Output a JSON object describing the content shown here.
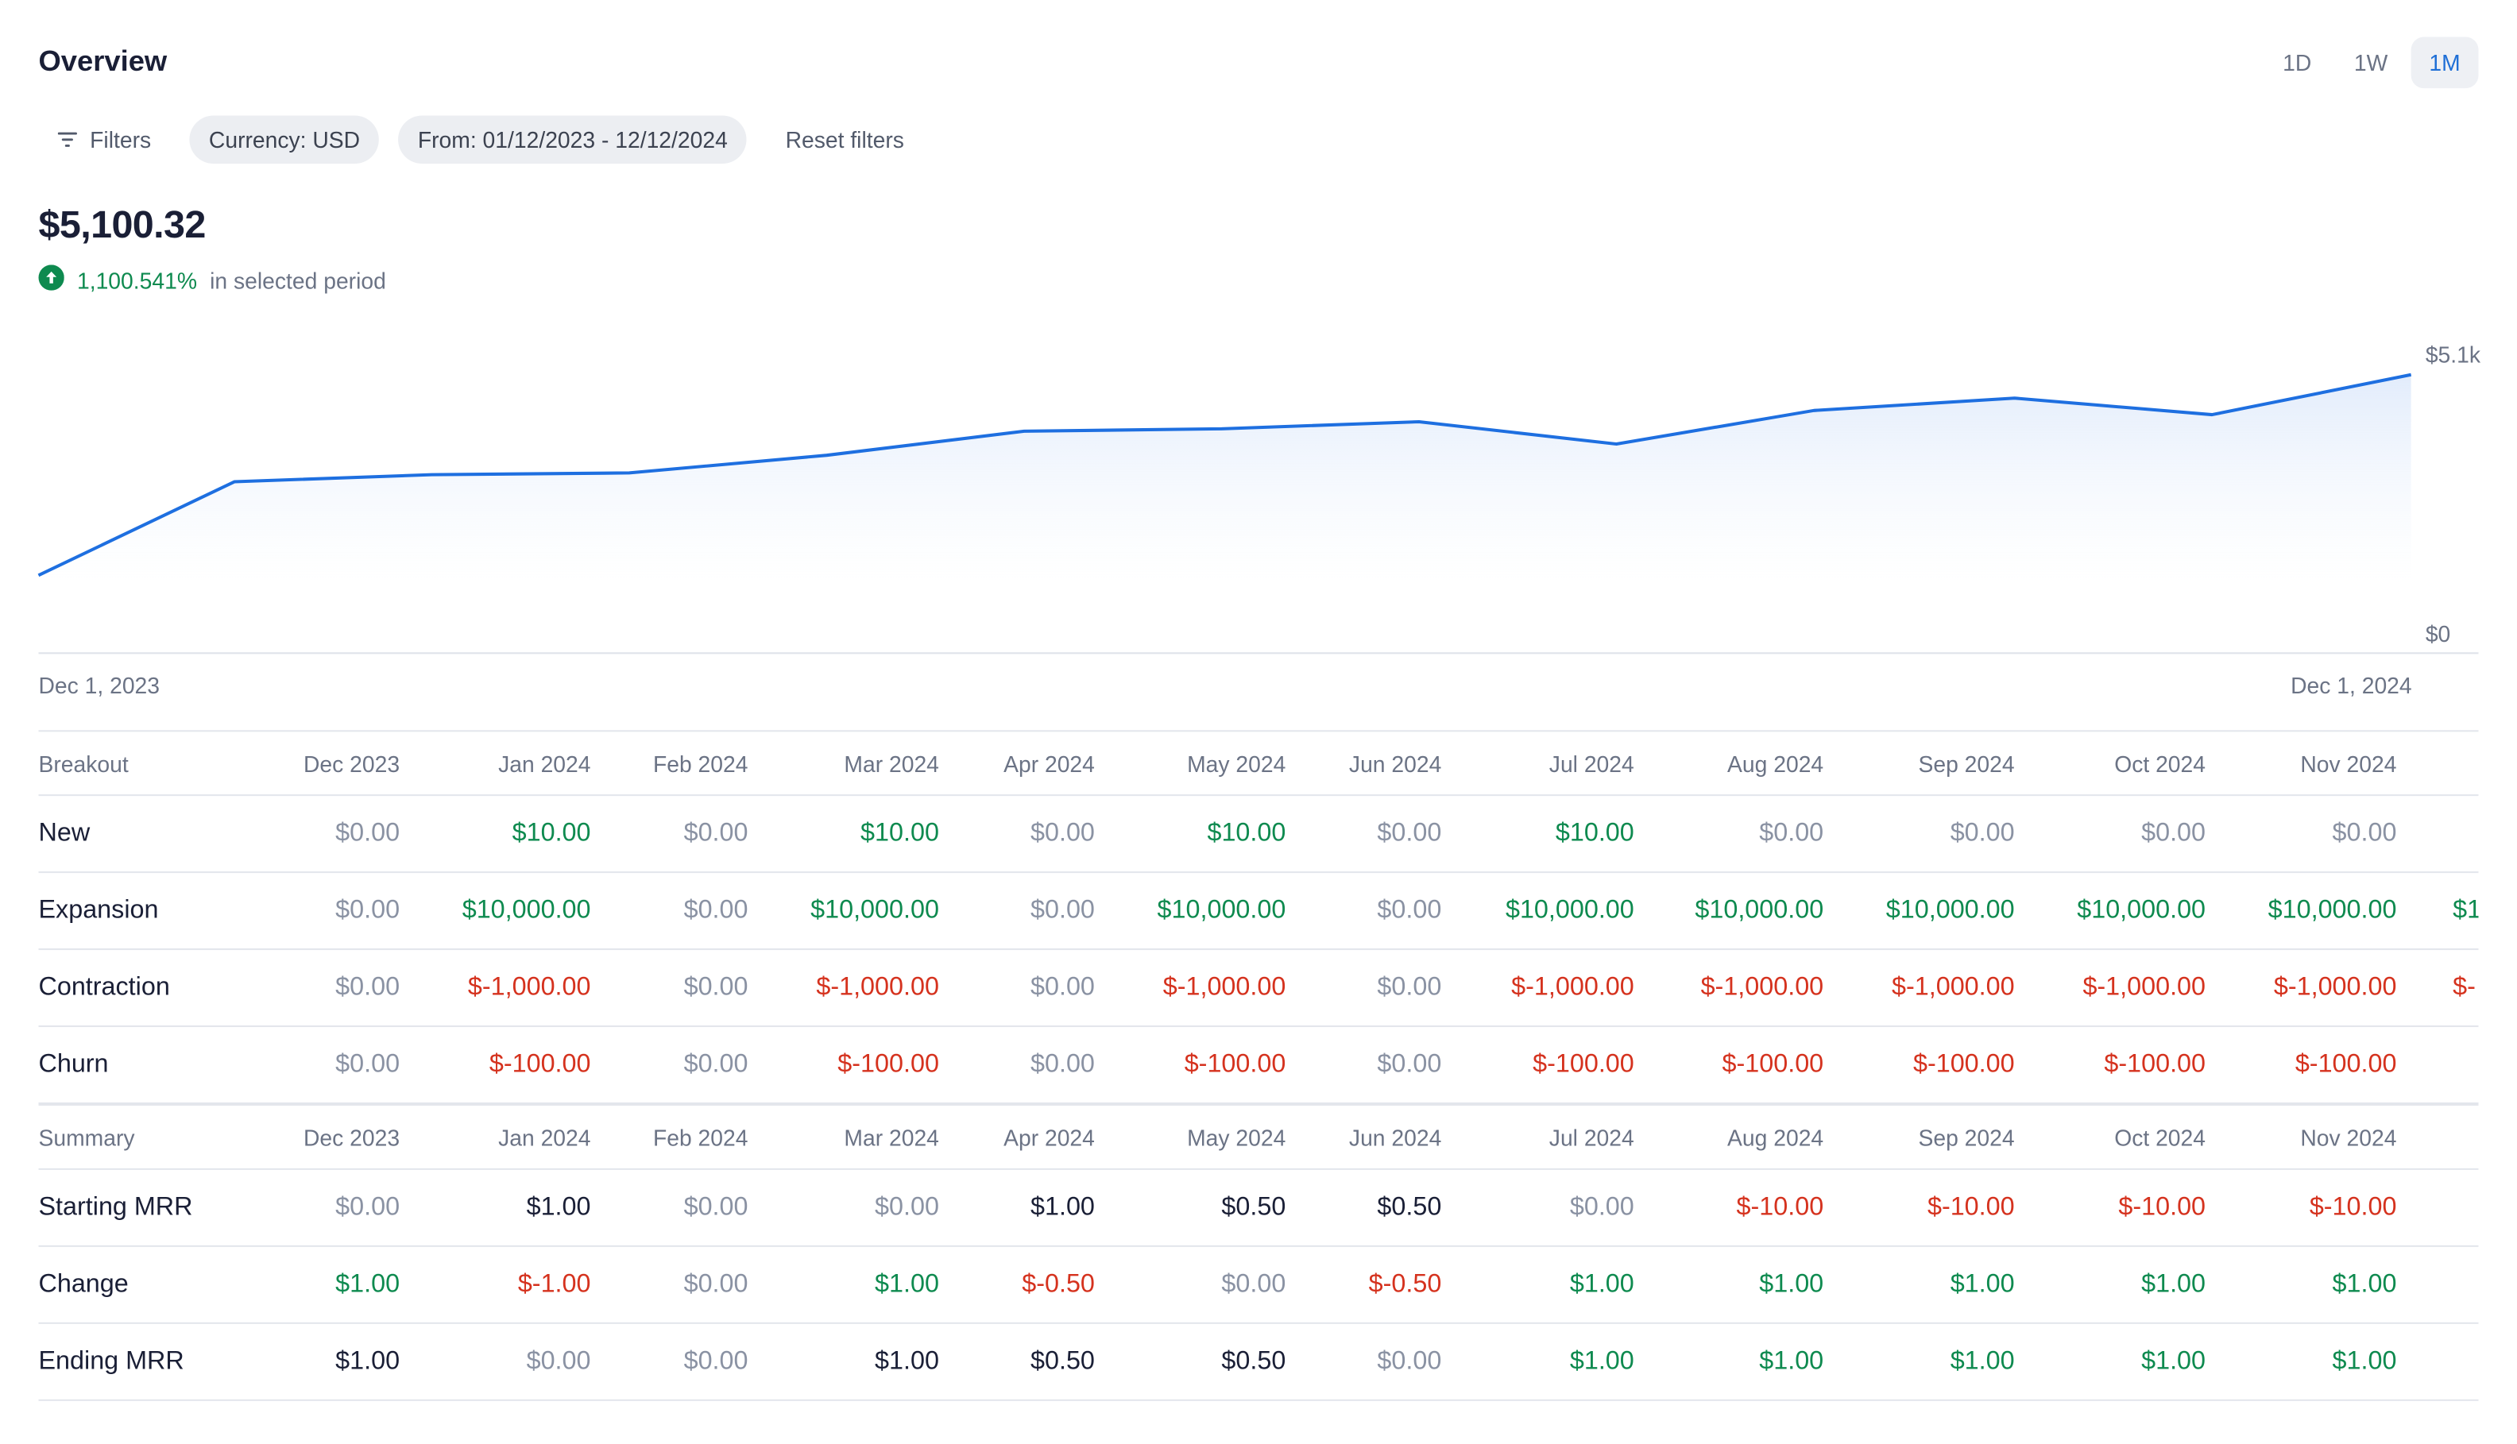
{
  "overview": {
    "title": "Overview",
    "range_tabs": [
      {
        "label": "1D",
        "active": false
      },
      {
        "label": "1W",
        "active": false
      },
      {
        "label": "1M",
        "active": true
      }
    ]
  },
  "filters": {
    "filters_label": "Filters",
    "currency_label": "Currency: USD",
    "date_label": "From: 01/12/2023 - 12/12/2024",
    "reset_label": "Reset filters"
  },
  "metric": {
    "value": "$5,100.32",
    "delta_pct": "1,100.541%",
    "delta_text": "in selected period",
    "delta_icon": "arrow-up-circle-icon"
  },
  "colors": {
    "line": "#1e6fe0",
    "positive": "#0e8a4f",
    "negative": "#d5321e",
    "zero": "#8a92a3",
    "accent": "#1f6fd6"
  },
  "chart_data": {
    "type": "area",
    "x_labels": [
      "Dec 1, 2023",
      "Dec 1, 2024"
    ],
    "x": [
      "Dec 2023",
      "Jan 2024",
      "Feb 2024",
      "Mar 2024",
      "Apr 2024",
      "May 2024",
      "Jun 2024",
      "Jul 2024",
      "Aug 2024",
      "Sep 2024",
      "Oct 2024",
      "Nov 2024",
      "Dec 2024"
    ],
    "values": [
      1050,
      2640,
      2760,
      2790,
      3090,
      3500,
      3540,
      3660,
      3280,
      3850,
      4060,
      3780,
      4460
    ],
    "y_ticks": [
      "$5.1k",
      "$0"
    ],
    "ylim": [
      0,
      5100
    ]
  },
  "table": {
    "months": [
      "Dec 2023",
      "Jan 2024",
      "Feb 2024",
      "Mar 2024",
      "Apr 2024",
      "May 2024",
      "Jun 2024",
      "Jul 2024",
      "Aug 2024",
      "Sep 2024",
      "Oct 2024",
      "Nov 2024"
    ],
    "breakout_title": "Breakout",
    "breakout_rows": [
      {
        "label": "New",
        "cells": [
          {
            "v": "$0.00",
            "k": "zero"
          },
          {
            "v": "$10.00",
            "k": "pos"
          },
          {
            "v": "$0.00",
            "k": "zero"
          },
          {
            "v": "$10.00",
            "k": "pos"
          },
          {
            "v": "$0.00",
            "k": "zero"
          },
          {
            "v": "$10.00",
            "k": "pos"
          },
          {
            "v": "$0.00",
            "k": "zero"
          },
          {
            "v": "$10.00",
            "k": "pos"
          },
          {
            "v": "$0.00",
            "k": "zero"
          },
          {
            "v": "$0.00",
            "k": "zero"
          },
          {
            "v": "$0.00",
            "k": "zero"
          },
          {
            "v": "$0.00",
            "k": "zero"
          }
        ],
        "overflow": {
          "v": "",
          "k": "zero"
        }
      },
      {
        "label": "Expansion",
        "cells": [
          {
            "v": "$0.00",
            "k": "zero"
          },
          {
            "v": "$10,000.00",
            "k": "pos"
          },
          {
            "v": "$0.00",
            "k": "zero"
          },
          {
            "v": "$10,000.00",
            "k": "pos"
          },
          {
            "v": "$0.00",
            "k": "zero"
          },
          {
            "v": "$10,000.00",
            "k": "pos"
          },
          {
            "v": "$0.00",
            "k": "zero"
          },
          {
            "v": "$10,000.00",
            "k": "pos"
          },
          {
            "v": "$10,000.00",
            "k": "pos"
          },
          {
            "v": "$10,000.00",
            "k": "pos"
          },
          {
            "v": "$10,000.00",
            "k": "pos"
          },
          {
            "v": "$10,000.00",
            "k": "pos"
          }
        ],
        "overflow": {
          "v": "$1",
          "k": "pos"
        }
      },
      {
        "label": "Contraction",
        "cells": [
          {
            "v": "$0.00",
            "k": "zero"
          },
          {
            "v": "$-1,000.00",
            "k": "neg"
          },
          {
            "v": "$0.00",
            "k": "zero"
          },
          {
            "v": "$-1,000.00",
            "k": "neg"
          },
          {
            "v": "$0.00",
            "k": "zero"
          },
          {
            "v": "$-1,000.00",
            "k": "neg"
          },
          {
            "v": "$0.00",
            "k": "zero"
          },
          {
            "v": "$-1,000.00",
            "k": "neg"
          },
          {
            "v": "$-1,000.00",
            "k": "neg"
          },
          {
            "v": "$-1,000.00",
            "k": "neg"
          },
          {
            "v": "$-1,000.00",
            "k": "neg"
          },
          {
            "v": "$-1,000.00",
            "k": "neg"
          }
        ],
        "overflow": {
          "v": "$-",
          "k": "neg"
        }
      },
      {
        "label": "Churn",
        "cells": [
          {
            "v": "$0.00",
            "k": "zero"
          },
          {
            "v": "$-100.00",
            "k": "neg"
          },
          {
            "v": "$0.00",
            "k": "zero"
          },
          {
            "v": "$-100.00",
            "k": "neg"
          },
          {
            "v": "$0.00",
            "k": "zero"
          },
          {
            "v": "$-100.00",
            "k": "neg"
          },
          {
            "v": "$0.00",
            "k": "zero"
          },
          {
            "v": "$-100.00",
            "k": "neg"
          },
          {
            "v": "$-100.00",
            "k": "neg"
          },
          {
            "v": "$-100.00",
            "k": "neg"
          },
          {
            "v": "$-100.00",
            "k": "neg"
          },
          {
            "v": "$-100.00",
            "k": "neg"
          }
        ],
        "overflow": {
          "v": "",
          "k": "zero"
        }
      }
    ],
    "summary_title": "Summary",
    "summary_rows": [
      {
        "label": "Starting MRR",
        "cells": [
          {
            "v": "$0.00",
            "k": "zero"
          },
          {
            "v": "$1.00",
            "k": "neutral"
          },
          {
            "v": "$0.00",
            "k": "zero"
          },
          {
            "v": "$0.00",
            "k": "zero"
          },
          {
            "v": "$1.00",
            "k": "neutral"
          },
          {
            "v": "$0.50",
            "k": "neutral"
          },
          {
            "v": "$0.50",
            "k": "neutral"
          },
          {
            "v": "$0.00",
            "k": "zero"
          },
          {
            "v": "$-10.00",
            "k": "neg"
          },
          {
            "v": "$-10.00",
            "k": "neg"
          },
          {
            "v": "$-10.00",
            "k": "neg"
          },
          {
            "v": "$-10.00",
            "k": "neg"
          }
        ],
        "overflow": {
          "v": "",
          "k": "zero"
        }
      },
      {
        "label": "Change",
        "cells": [
          {
            "v": "$1.00",
            "k": "pos"
          },
          {
            "v": "$-1.00",
            "k": "neg"
          },
          {
            "v": "$0.00",
            "k": "zero"
          },
          {
            "v": "$1.00",
            "k": "pos"
          },
          {
            "v": "$-0.50",
            "k": "neg"
          },
          {
            "v": "$0.00",
            "k": "zero"
          },
          {
            "v": "$-0.50",
            "k": "neg"
          },
          {
            "v": "$1.00",
            "k": "pos"
          },
          {
            "v": "$1.00",
            "k": "pos"
          },
          {
            "v": "$1.00",
            "k": "pos"
          },
          {
            "v": "$1.00",
            "k": "pos"
          },
          {
            "v": "$1.00",
            "k": "pos"
          }
        ],
        "overflow": {
          "v": "",
          "k": "zero"
        }
      },
      {
        "label": "Ending MRR",
        "cells": [
          {
            "v": "$1.00",
            "k": "neutral"
          },
          {
            "v": "$0.00",
            "k": "zero"
          },
          {
            "v": "$0.00",
            "k": "zero"
          },
          {
            "v": "$1.00",
            "k": "neutral"
          },
          {
            "v": "$0.50",
            "k": "neutral"
          },
          {
            "v": "$0.50",
            "k": "neutral"
          },
          {
            "v": "$0.00",
            "k": "zero"
          },
          {
            "v": "$1.00",
            "k": "pos"
          },
          {
            "v": "$1.00",
            "k": "pos"
          },
          {
            "v": "$1.00",
            "k": "pos"
          },
          {
            "v": "$1.00",
            "k": "pos"
          },
          {
            "v": "$1.00",
            "k": "pos"
          }
        ],
        "overflow": {
          "v": "",
          "k": "zero"
        }
      }
    ]
  }
}
